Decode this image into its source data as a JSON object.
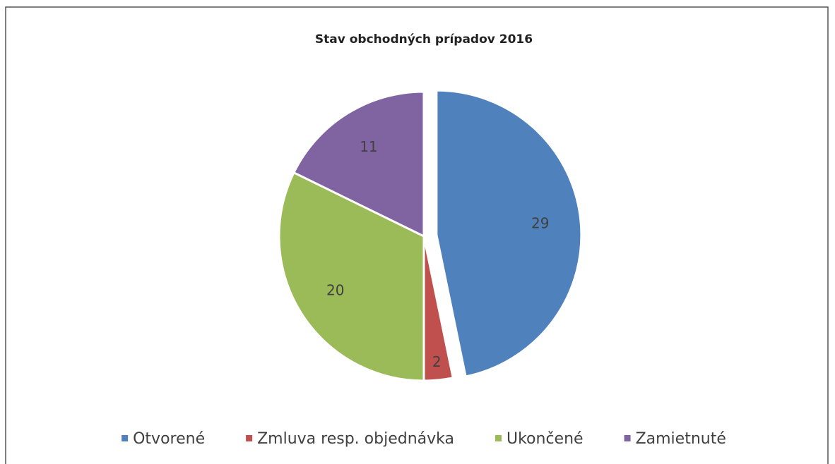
{
  "chart_data": {
    "type": "pie",
    "title": "Stav obchodných prípadov 2016",
    "categories": [
      "Otvorené",
      "Zmluva resp. objednávka",
      "Ukončené",
      "Zamietnuté"
    ],
    "values": [
      29,
      2,
      20,
      11
    ],
    "colors": [
      "#4f81bd",
      "#c0504d",
      "#9bbb59",
      "#8064a2"
    ],
    "legend": "bottom"
  }
}
